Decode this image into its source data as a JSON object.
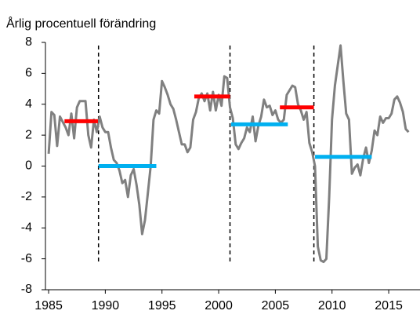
{
  "chart_data": {
    "type": "line",
    "title": "Årlig procentuell förändring",
    "x": [
      1985,
      1985.25,
      1985.5,
      1985.75,
      1986,
      1986.5,
      1986.75,
      1987,
      1987.25,
      1987.5,
      1987.75,
      1988.25,
      1988.5,
      1988.75,
      1989,
      1989.25,
      1989.5,
      1989.75,
      1990,
      1990.25,
      1990.5,
      1990.75,
      1991,
      1991.25,
      1991.5,
      1991.75,
      1992,
      1992.25,
      1992.5,
      1992.75,
      1993,
      1993.25,
      1993.5,
      1993.75,
      1994,
      1994.25,
      1994.5,
      1994.75,
      1995,
      1995.25,
      1995.5,
      1995.75,
      1996,
      1996.25,
      1996.5,
      1996.75,
      1997,
      1997.25,
      1997.5,
      1997.75,
      1998,
      1998.25,
      1998.5,
      1998.75,
      1999,
      1999.25,
      1999.5,
      1999.75,
      2000,
      2000.25,
      2000.5,
      2000.75,
      2001,
      2001.25,
      2001.5,
      2001.75,
      2002,
      2002.25,
      2002.5,
      2002.75,
      2003,
      2003.25,
      2003.5,
      2003.75,
      2004,
      2004.25,
      2004.5,
      2004.75,
      2005,
      2005.25,
      2005.5,
      2005.75,
      2006,
      2006.25,
      2006.5,
      2006.75,
      2007,
      2007.25,
      2007.5,
      2007.75,
      2008,
      2008.25,
      2008.5,
      2008.75,
      2009,
      2009.25,
      2009.5,
      2009.75,
      2010,
      2010.25,
      2010.5,
      2010.75,
      2011,
      2011.25,
      2011.5,
      2011.75,
      2012,
      2012.25,
      2012.5,
      2012.75,
      2013,
      2013.25,
      2013.5,
      2013.75,
      2014,
      2014.25,
      2014.5,
      2014.75,
      2015,
      2015.25,
      2015.5,
      2015.75,
      2016,
      2016.25,
      2016.5,
      2016.75
    ],
    "values": [
      0.8,
      3.5,
      3.3,
      1.3,
      3.2,
      2.5,
      2.0,
      3.4,
      1.8,
      3.8,
      4.2,
      4.2,
      2.0,
      1.2,
      3.0,
      2.2,
      3.2,
      2.5,
      2.2,
      2.2,
      1.2,
      0.4,
      0.2,
      -0.3,
      -1.1,
      -0.9,
      -2.0,
      -0.6,
      -0.2,
      -1.2,
      -2.5,
      -4.4,
      -3.5,
      -1.8,
      0,
      3.0,
      3.6,
      3.4,
      5.5,
      5.1,
      4.6,
      4.0,
      3.7,
      3.0,
      2.2,
      1.4,
      1.4,
      0.9,
      1.2,
      3.0,
      3.5,
      4.4,
      4.7,
      4.2,
      4.7,
      3.6,
      4.8,
      3.6,
      4.6,
      3.9,
      5.8,
      5.7,
      3.8,
      3.1,
      1.4,
      1.1,
      1.5,
      1.8,
      2.5,
      2.2,
      3.2,
      1.6,
      2.6,
      3.2,
      4.3,
      3.8,
      3.9,
      3.3,
      3.6,
      3.0,
      2.8,
      3.0,
      4.6,
      4.9,
      5.2,
      5.1,
      4.0,
      3.6,
      3.0,
      3.5,
      1.5,
      0.9,
      0.0,
      -5.2,
      -6.1,
      -6.2,
      -6.0,
      -2.0,
      3.0,
      5.2,
      6.5,
      7.8,
      5.5,
      3.4,
      3.0,
      -0.5,
      -0.1,
      0.1,
      -0.6,
      0.5,
      1.2,
      0.2,
      1.0,
      2.3,
      2.0,
      3.2,
      2.8,
      3.1,
      3.1,
      3.4,
      4.3,
      4.5,
      4.1,
      3.5,
      2.4,
      2.2
    ],
    "color": "#808080",
    "segments": [
      {
        "x": [
          1986.4,
          1989.35
        ],
        "value": 2.9,
        "color": "#ff0000"
      },
      {
        "x": [
          1989.4,
          1994.5
        ],
        "value": 0,
        "color": "#00b0f0"
      },
      {
        "x": [
          1997.85,
          2001.0
        ],
        "value": 4.5,
        "color": "#ff0000"
      },
      {
        "x": [
          2001.1,
          2006.1
        ],
        "value": 2.7,
        "color": "#00b0f0"
      },
      {
        "x": [
          2005.4,
          2008.4
        ],
        "value": 3.8,
        "color": "#ff0000"
      },
      {
        "x": [
          2008.5,
          2013.5
        ],
        "value": 0.6,
        "color": "#00b0f0"
      }
    ],
    "vlines": [
      1989.4,
      2001.0,
      2008.4
    ],
    "vline_range": [
      -6.2,
      7.8
    ],
    "xlim": [
      1984.72,
      2017.76
    ],
    "xticks": [
      1985,
      1990,
      1995,
      2000,
      2005,
      2010,
      2015
    ],
    "ylim": [
      -8,
      8
    ],
    "yticks": [
      -8,
      -6,
      -4,
      -2,
      0,
      2,
      4,
      6,
      8
    ]
  }
}
